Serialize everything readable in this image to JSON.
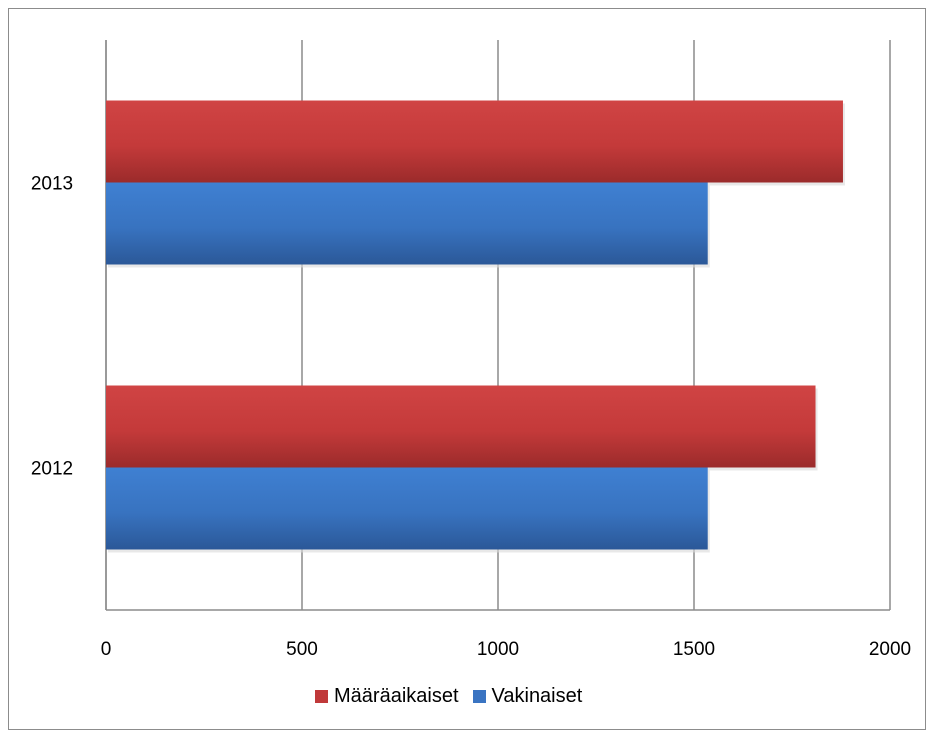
{
  "chart_data": {
    "type": "bar",
    "orientation": "horizontal",
    "categories": [
      "2012",
      "2013"
    ],
    "series": [
      {
        "name": "Määräaikaiset",
        "values": [
          1810,
          1880
        ],
        "color": "#c0393a"
      },
      {
        "name": "Vakinaiset",
        "values": [
          1535,
          1535
        ],
        "color": "#3a74c2"
      }
    ],
    "xlim": [
      0,
      2000
    ],
    "xticks": [
      "0",
      "500",
      "1000",
      "1500",
      "2000"
    ],
    "grid": "vertical",
    "legend_position": "bottom",
    "title": "",
    "xlabel": "",
    "ylabel": ""
  }
}
